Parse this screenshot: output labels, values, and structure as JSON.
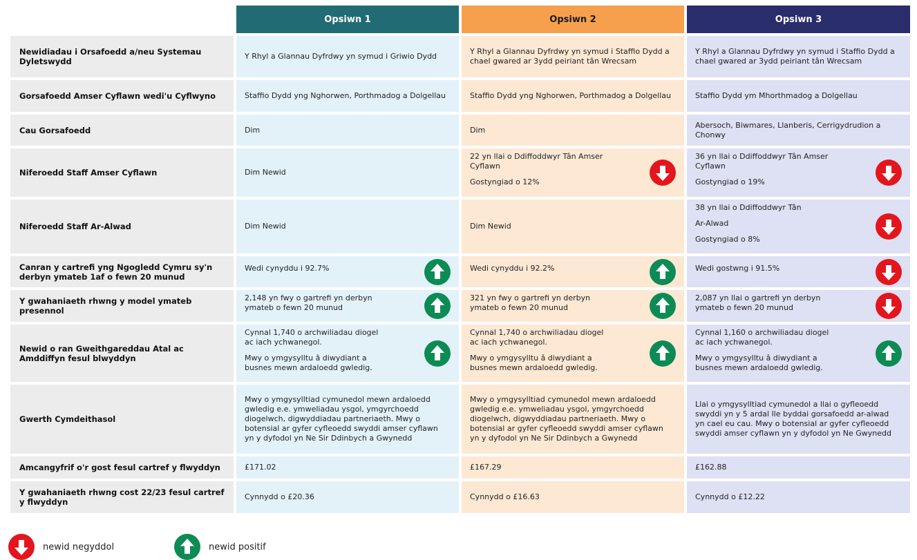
{
  "header": {
    "columns": [
      "Opsiwn 1",
      "Opsiwn 2",
      "Opsiwn 3"
    ],
    "colors": [
      "#216c74",
      "#f6a04e",
      "#292d6c"
    ],
    "text_colors": [
      "#ffffff",
      "#1a1a1a",
      "#ffffff"
    ]
  },
  "table": {
    "cell_colors": [
      "#e3f2f9",
      "#fde8d4",
      "#dee0f3"
    ],
    "rows": [
      {
        "label": "Newidiadau i Orsafoedd a/neu Systemau Dyletswydd",
        "cells": [
          {
            "text": [
              "Y Rhyl a Glannau Dyfrdwy yn symud i Griwio Dydd"
            ]
          },
          {
            "text": [
              "Y Rhyl a Glannau Dyfrdwy yn symud i Staffio Dydd a chael gwared ar 3ydd peiriant tân Wrecsam"
            ]
          },
          {
            "text": [
              "Y Rhyl a Glannau Dyfrdwy yn symud i Staffio Dydd a chael gwared ar 3ydd peiriant tân Wrecsam"
            ]
          }
        ]
      },
      {
        "label": "Gorsafoedd Amser Cyflawn wedi'u Cyflwyno",
        "cells": [
          {
            "text": [
              "Staffio Dydd yng Nghorwen, Porthmadog a Dolgellau"
            ]
          },
          {
            "text": [
              "Staffio Dydd yng Nghorwen, Porthmadog a Dolgellau"
            ]
          },
          {
            "text": [
              "Staffio Dydd ym Mhorthmadog a Dolgellau"
            ]
          }
        ]
      },
      {
        "label": "Cau Gorsafoedd",
        "cells": [
          {
            "text": [
              "Dim"
            ]
          },
          {
            "text": [
              "Dim"
            ]
          },
          {
            "text": [
              "Abersoch, Biwmares, Llanberis, Cerrigydrudion a Chonwy"
            ]
          }
        ]
      },
      {
        "label": "Niferoedd Staff Amser Cyflawn",
        "cells": [
          {
            "text": [
              "Dim Newid"
            ]
          },
          {
            "text": [
              "22 yn llai o Ddiffoddwyr Tân Amser Cyflawn",
              "Gostyngiad o 12%"
            ],
            "icon": "down"
          },
          {
            "text": [
              "36 yn llai o Ddiffoddwyr Tân Amser Cyflawn",
              "Gostyngiad o 19%"
            ],
            "icon": "down"
          }
        ]
      },
      {
        "label": "Niferoedd Staff Ar-Alwad",
        "cells": [
          {
            "text": [
              "Dim Newid"
            ]
          },
          {
            "text": [
              "Dim Newid"
            ]
          },
          {
            "text": [
              "38 yn llai o Ddiffoddwyr Tân",
              "Ar-Alwad",
              "Gostyngiad o 8%"
            ],
            "icon": "down"
          }
        ]
      },
      {
        "label": "Canran y cartrefi yng Ngogledd Cymru sy'n derbyn ymateb 1af o fewn 20 munud",
        "cells": [
          {
            "text": [
              "Wedi cynyddu i 92.7%"
            ],
            "icon": "up"
          },
          {
            "text": [
              "Wedi cynyddu i 92.2%"
            ],
            "icon": "up"
          },
          {
            "text": [
              "Wedi gostwng i 91.5%"
            ],
            "icon": "down"
          }
        ]
      },
      {
        "label": "Y gwahaniaeth rhwng y model ymateb presennol",
        "cells": [
          {
            "text": [
              "2,148 yn fwy o gartrefi yn derbyn ymateb o fewn 20 munud"
            ],
            "icon": "up"
          },
          {
            "text": [
              "321 yn fwy o gartrefi yn derbyn ymateb o fewn 20 munud"
            ],
            "icon": "up"
          },
          {
            "text": [
              "2,087 yn llai o gartrefi yn derbyn ymateb o fewn 20 munud"
            ],
            "icon": "down"
          }
        ]
      },
      {
        "label": "Newid o ran Gweithgareddau Atal ac Amddiffyn fesul blwyddyn",
        "cells": [
          {
            "text": [
              "Cynnal 1,740 o archwiliadau diogel ac iach ychwanegol.",
              "Mwy o ymgysylltu â diwydiant a busnes mewn ardaloedd gwledig."
            ],
            "icon": "up"
          },
          {
            "text": [
              "Cynnal 1,740 o archwiliadau diogel ac iach ychwanegol.",
              "Mwy o ymgysylltu â diwydiant a busnes mewn ardaloedd gwledig."
            ],
            "icon": "up"
          },
          {
            "text": [
              "Cynnal 1,160 o archwiliadau diogel ac iach ychwanegol.",
              "Mwy o ymgysylltu â diwydiant a busnes mewn ardaloedd gwledig."
            ],
            "icon": "up"
          }
        ]
      },
      {
        "label": "Gwerth Cymdeithasol",
        "cells": [
          {
            "text": [
              "Mwy o ymgysylltiad cymunedol mewn ardaloedd gwledig e.e. ymweliadau ysgol, ymgyrchoedd diogelwch, digwyddiadau partneriaeth. Mwy o botensial ar gyfer cyfleoedd swyddi amser cyflawn yn y dyfodol yn Ne Sir Ddinbych a Gwynedd"
            ]
          },
          {
            "text": [
              "Mwy o ymgysylltiad cymunedol mewn ardaloedd gwledig e.e. ymweliadau ysgol, ymgyrchoedd diogelwch, digwyddiadau partneriaeth. Mwy o botensial ar gyfer cyfleoedd swyddi amser cyflawn yn y dyfodol yn Ne Sir Ddinbych a Gwynedd"
            ]
          },
          {
            "text": [
              "Llai o ymgysylltiad cymunedol a llai o gyfleoedd swyddi yn y 5 ardal lle byddai gorsafoedd ar-alwad yn cael eu cau. Mwy o botensial ar gyfer cyfleoedd swyddi amser cyflawn yn y dyfodol yn Ne Gwynedd"
            ]
          }
        ]
      },
      {
        "label": "Amcangyfrif o'r gost fesul cartref y flwyddyn",
        "cells": [
          {
            "text": [
              "£171.02"
            ]
          },
          {
            "text": [
              "£167.29"
            ]
          },
          {
            "text": [
              "£162.88"
            ]
          }
        ]
      },
      {
        "label": "Y gwahaniaeth rhwng cost 22/23 fesul cartref y flwyddyn",
        "cells": [
          {
            "text": [
              "Cynnydd o £20.36"
            ]
          },
          {
            "text": [
              "Cynnydd o £16.63"
            ]
          },
          {
            "text": [
              "Cynnydd o £12.22"
            ]
          }
        ]
      }
    ]
  },
  "icon_colors": {
    "down": "#e3161d",
    "up": "#0d8b55"
  },
  "legend": [
    {
      "icon": "down",
      "label": "newid negyddol"
    },
    {
      "icon": "up",
      "label": "newid positif"
    }
  ]
}
